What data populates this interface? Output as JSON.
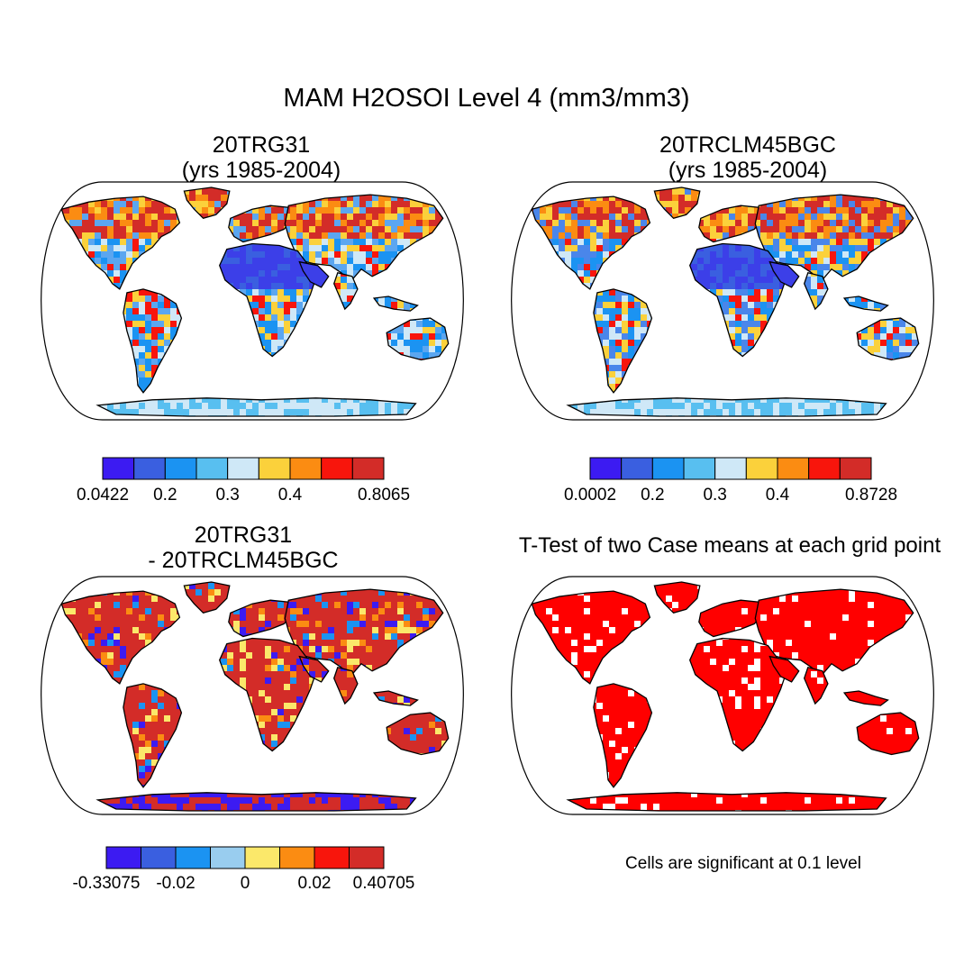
{
  "title": "MAM H2OSOI Level 4 (mm3/mm3)",
  "chart_data": [
    {
      "type": "heatmap",
      "name": "case1",
      "title_line1": "20TRG31",
      "title_line2": "(yrs 1985-2004)",
      "projection": "Robinson world map",
      "colorbar": {
        "colors": [
          "#3c1bf2",
          "#3a5fe0",
          "#1b93f2",
          "#58bff0",
          "#cfe8f7",
          "#fbd13b",
          "#fb8c12",
          "#f8150c",
          "#d32c28"
        ],
        "labels": [
          "0.0422",
          "0.2",
          "0.3",
          "0.4",
          "0.8065"
        ],
        "label_positions": [
          0,
          2,
          4,
          6,
          9
        ]
      }
    },
    {
      "type": "heatmap",
      "name": "case2",
      "title_line1": "20TRCLM45BGC",
      "title_line2": "(yrs 1985-2004)",
      "projection": "Robinson world map",
      "colorbar": {
        "colors": [
          "#3c1bf2",
          "#3a5fe0",
          "#1b93f2",
          "#58bff0",
          "#cfe8f7",
          "#fbd13b",
          "#fb8c12",
          "#f8150c",
          "#d32c28"
        ],
        "labels": [
          "0.0002",
          "0.2",
          "0.3",
          "0.4",
          "0.8728"
        ],
        "label_positions": [
          0,
          2,
          4,
          6,
          9
        ]
      }
    },
    {
      "type": "heatmap",
      "name": "difference",
      "title_line1": "20TRG31",
      "title_line2": "- 20TRCLM45BGC",
      "projection": "Robinson world map",
      "colorbar": {
        "colors": [
          "#3c1bf2",
          "#3a5fe0",
          "#1b93f2",
          "#99cdef",
          "#fbe86a",
          "#fb8c12",
          "#f8150c",
          "#d32c28"
        ],
        "labels": [
          "-0.33075",
          "-0.02",
          "0",
          "0.02",
          "0.40705"
        ],
        "label_positions": [
          0,
          2,
          4,
          6,
          8
        ]
      }
    },
    {
      "type": "heatmap",
      "name": "ttest",
      "title_line1": "T-Test of two Case means at each grid point",
      "projection": "Robinson world map",
      "note": "Cells are significant at 0.1 level",
      "significant_color": "#ff0000"
    }
  ],
  "colors": {
    "land_case1": "#5ba6f0",
    "land_case2": "#4a86ea",
    "land_diff": "#d32c28",
    "land_ttest": "#ff0000",
    "ocean": "#ffffff",
    "desert": "#3c3fe8"
  }
}
